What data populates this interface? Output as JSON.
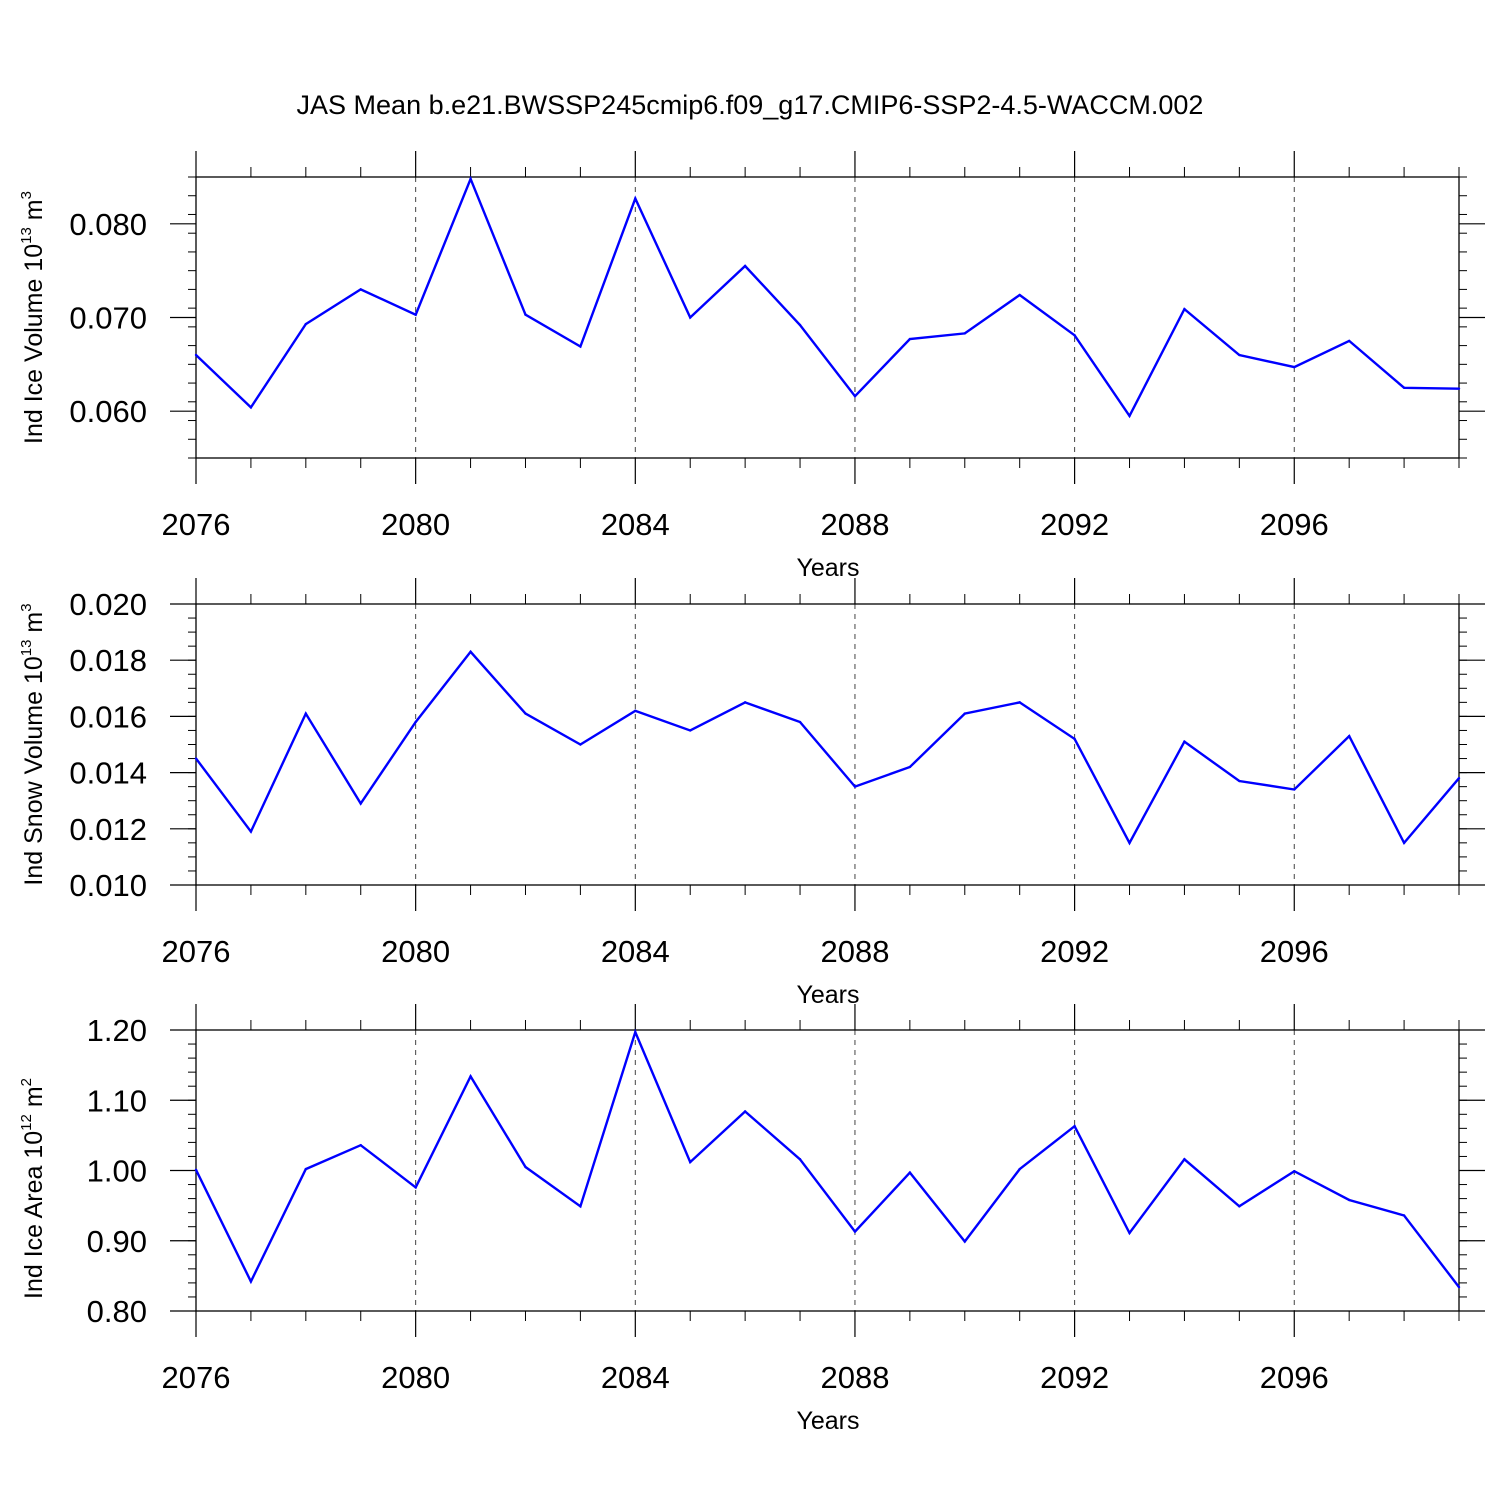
{
  "figure": {
    "title": "JAS Mean b.e21.BWSSP245cmip6.f09_g17.CMIP6-SSP2-4.5-WACCM.002"
  },
  "chart_data": [
    {
      "type": "line",
      "ylabel_main": "Ind Ice Volume 10",
      "ylabel_exp": "13",
      "ylabel_unit": " m",
      "ylabel_unit_exp": "3",
      "xlabel": "Years",
      "xlim": [
        2076,
        2099
      ],
      "ylim": [
        0.055,
        0.085
      ],
      "y_major_ticks": [
        0.06,
        0.07,
        0.08
      ],
      "y_tick_labels": [
        "0.060",
        "0.070",
        "0.080"
      ],
      "y_minor_step": 0.002,
      "x_major_ticks": [
        2076,
        2080,
        2084,
        2088,
        2092,
        2096
      ],
      "x_tick_labels": [
        "2076",
        "2080",
        "2084",
        "2088",
        "2092",
        "2096"
      ],
      "grid": "vertical-dashed",
      "color": "#0000ff",
      "x": [
        2076,
        2077,
        2078,
        2079,
        2080,
        2081,
        2082,
        2083,
        2084,
        2085,
        2086,
        2087,
        2088,
        2089,
        2090,
        2091,
        2092,
        2093,
        2094,
        2095,
        2096,
        2097,
        2098,
        2099
      ],
      "values": [
        0.066,
        0.0604,
        0.0693,
        0.073,
        0.0703,
        0.0848,
        0.0703,
        0.0669,
        0.0827,
        0.07,
        0.0755,
        0.0692,
        0.0616,
        0.0677,
        0.0683,
        0.0724,
        0.0681,
        0.0595,
        0.0709,
        0.066,
        0.0647,
        0.0675,
        0.0625,
        0.0624
      ]
    },
    {
      "type": "line",
      "ylabel_main": "Ind Snow Volume 10",
      "ylabel_exp": "13",
      "ylabel_unit": " m",
      "ylabel_unit_exp": "3",
      "xlabel": "Years",
      "xlim": [
        2076,
        2099
      ],
      "ylim": [
        0.01,
        0.02
      ],
      "y_major_ticks": [
        0.01,
        0.012,
        0.014,
        0.016,
        0.018,
        0.02
      ],
      "y_tick_labels": [
        "0.010",
        "0.012",
        "0.014",
        "0.016",
        "0.018",
        "0.020"
      ],
      "y_minor_step": 0.0005,
      "x_major_ticks": [
        2076,
        2080,
        2084,
        2088,
        2092,
        2096
      ],
      "x_tick_labels": [
        "2076",
        "2080",
        "2084",
        "2088",
        "2092",
        "2096"
      ],
      "grid": "vertical-dashed",
      "color": "#0000ff",
      "x": [
        2076,
        2077,
        2078,
        2079,
        2080,
        2081,
        2082,
        2083,
        2084,
        2085,
        2086,
        2087,
        2088,
        2089,
        2090,
        2091,
        2092,
        2093,
        2094,
        2095,
        2096,
        2097,
        2098,
        2099
      ],
      "values": [
        0.0145,
        0.0119,
        0.0161,
        0.0129,
        0.0158,
        0.0183,
        0.0161,
        0.015,
        0.0162,
        0.0155,
        0.0165,
        0.0158,
        0.0135,
        0.0142,
        0.0161,
        0.0165,
        0.0152,
        0.0115,
        0.0151,
        0.0137,
        0.0134,
        0.0153,
        0.0115,
        0.0138
      ]
    },
    {
      "type": "line",
      "ylabel_main": "Ind Ice Area 10",
      "ylabel_exp": "12",
      "ylabel_unit": " m",
      "ylabel_unit_exp": "2",
      "xlabel": "Years",
      "xlim": [
        2076,
        2099
      ],
      "ylim": [
        0.8,
        1.2
      ],
      "y_major_ticks": [
        0.8,
        0.9,
        1.0,
        1.1,
        1.2
      ],
      "y_tick_labels": [
        "0.80",
        "0.90",
        "1.00",
        "1.10",
        "1.20"
      ],
      "y_minor_step": 0.02,
      "x_major_ticks": [
        2076,
        2080,
        2084,
        2088,
        2092,
        2096
      ],
      "x_tick_labels": [
        "2076",
        "2080",
        "2084",
        "2088",
        "2092",
        "2096"
      ],
      "grid": "vertical-dashed",
      "color": "#0000ff",
      "x": [
        2076,
        2077,
        2078,
        2079,
        2080,
        2081,
        2082,
        2083,
        2084,
        2085,
        2086,
        2087,
        2088,
        2089,
        2090,
        2091,
        2092,
        2093,
        2094,
        2095,
        2096,
        2097,
        2098,
        2099
      ],
      "values": [
        1.001,
        0.842,
        1.002,
        1.036,
        0.976,
        1.134,
        1.005,
        0.949,
        1.197,
        1.012,
        1.084,
        1.016,
        0.913,
        0.997,
        0.899,
        1.002,
        1.063,
        0.911,
        1.016,
        0.949,
        0.999,
        0.958,
        0.936,
        0.834
      ]
    }
  ]
}
